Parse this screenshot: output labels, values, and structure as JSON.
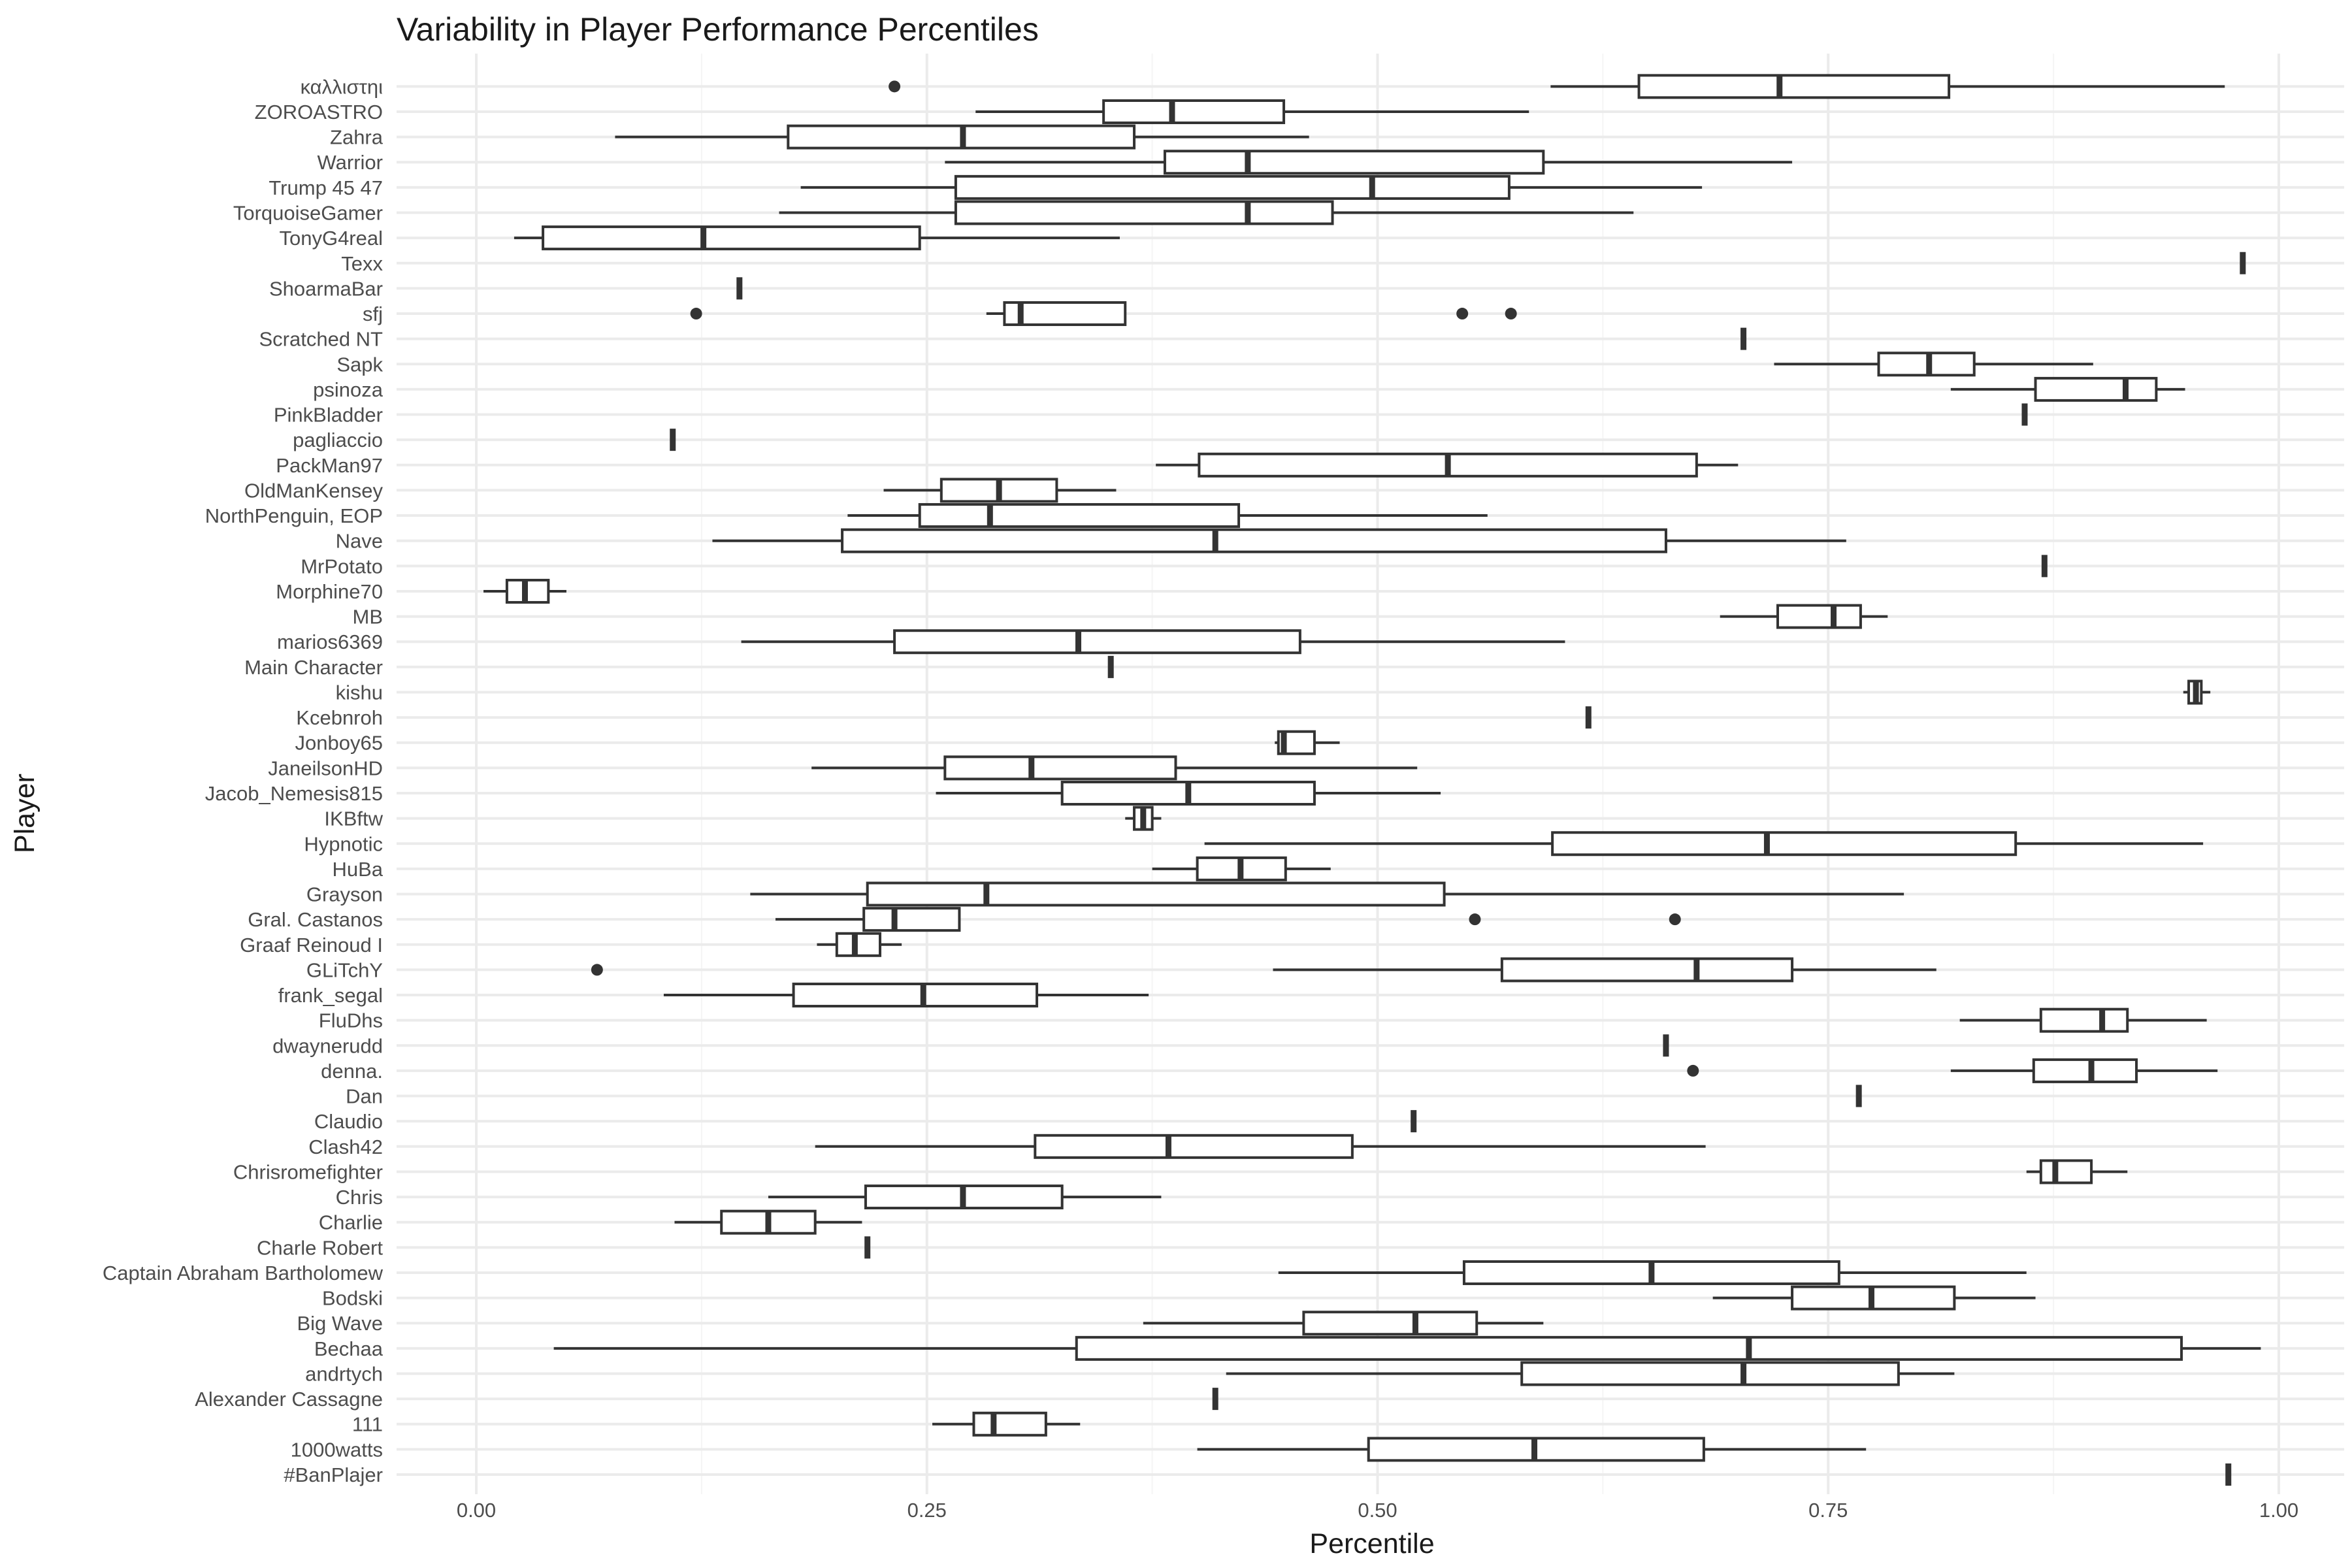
{
  "chart_data": {
    "type": "boxplot",
    "title": "Variability in Player Performance Percentiles",
    "xlabel": "Percentile",
    "ylabel": "Player",
    "xlim": [
      -0.04,
      1.04
    ],
    "xticks": [
      0,
      0.25,
      0.5,
      0.75,
      1
    ],
    "xtick_labels": [
      "0.00",
      "0.25",
      "0.50",
      "0.75",
      "1.00"
    ],
    "grid": true,
    "legend": "none",
    "colors": {
      "box_stroke": "#333333",
      "box_fill": "#ffffff",
      "grid_major": "#ebebeb",
      "grid_minor": "#f5f5f5",
      "outlier": "#333333"
    },
    "categories": [
      "#BanPlajer",
      "1000watts",
      "111",
      "Alexander Cassagne",
      "andrtych",
      "Bechaa",
      "Big Wave",
      "Bodski",
      "Captain Abraham Bartholomew",
      "Charle Robert",
      "Charlie",
      "Chris",
      "Chrisromefighter",
      "Clash42",
      "Claudio",
      "Dan",
      "denna.",
      "dwaynerudd",
      "FluDhs",
      "frank_segal",
      "GLiTchY",
      "Graaf Reinoud I",
      "Gral. Castanos",
      "Grayson",
      "HuBa",
      "Hypnotic",
      "IKBftw",
      "Jacob_Nemesis815",
      "JaneilsonHD",
      "Jonboy65",
      "Kcebnroh",
      "kishu",
      "Main Character",
      "marios6369",
      "MB",
      "Morphine70",
      "MrPotato",
      "Nave",
      "NorthPenguin, EOP",
      "OldManKensey",
      "PackMan97",
      "pagliaccio",
      "PinkBladder",
      "psinoza",
      "Sapk",
      "Scratched NT",
      "sfj",
      "ShoarmaBar",
      "Texx",
      "TonyG4real",
      "TorquoiseGamer",
      "Trump 45 47",
      "Warrior",
      "Zahra",
      "ZOROASTRO",
      "καλλιστηι"
    ],
    "boxes": [
      {
        "player": "#BanPlajer",
        "min": 0.972,
        "q1": 0.972,
        "median": 0.972,
        "q3": 0.972,
        "max": 0.972,
        "outliers": []
      },
      {
        "player": "1000watts",
        "min": 0.4,
        "q1": 0.495,
        "median": 0.587,
        "q3": 0.681,
        "max": 0.771,
        "outliers": []
      },
      {
        "player": "111",
        "min": 0.253,
        "q1": 0.276,
        "median": 0.287,
        "q3": 0.316,
        "max": 0.335,
        "outliers": []
      },
      {
        "player": "Alexander Cassagne",
        "min": 0.41,
        "q1": 0.41,
        "median": 0.41,
        "q3": 0.41,
        "max": 0.41,
        "outliers": []
      },
      {
        "player": "andrtych",
        "min": 0.416,
        "q1": 0.58,
        "median": 0.703,
        "q3": 0.789,
        "max": 0.82,
        "outliers": []
      },
      {
        "player": "Bechaa",
        "min": 0.043,
        "q1": 0.333,
        "median": 0.706,
        "q3": 0.946,
        "max": 0.99,
        "outliers": []
      },
      {
        "player": "Big Wave",
        "min": 0.37,
        "q1": 0.459,
        "median": 0.521,
        "q3": 0.555,
        "max": 0.592,
        "outliers": []
      },
      {
        "player": "Bodski",
        "min": 0.686,
        "q1": 0.73,
        "median": 0.774,
        "q3": 0.82,
        "max": 0.865,
        "outliers": []
      },
      {
        "player": "Captain Abraham Bartholomew",
        "min": 0.445,
        "q1": 0.548,
        "median": 0.652,
        "q3": 0.756,
        "max": 0.86,
        "outliers": []
      },
      {
        "player": "Charle Robert",
        "min": 0.217,
        "q1": 0.217,
        "median": 0.217,
        "q3": 0.217,
        "max": 0.217,
        "outliers": []
      },
      {
        "player": "Charlie",
        "min": 0.11,
        "q1": 0.136,
        "median": 0.162,
        "q3": 0.188,
        "max": 0.214,
        "outliers": []
      },
      {
        "player": "Chris",
        "min": 0.162,
        "q1": 0.216,
        "median": 0.27,
        "q3": 0.325,
        "max": 0.38,
        "outliers": []
      },
      {
        "player": "Chrisromefighter",
        "min": 0.86,
        "q1": 0.868,
        "median": 0.876,
        "q3": 0.896,
        "max": 0.916,
        "outliers": []
      },
      {
        "player": "Clash42",
        "min": 0.188,
        "q1": 0.31,
        "median": 0.384,
        "q3": 0.486,
        "max": 0.682,
        "outliers": []
      },
      {
        "player": "Claudio",
        "min": 0.52,
        "q1": 0.52,
        "median": 0.52,
        "q3": 0.52,
        "max": 0.52,
        "outliers": []
      },
      {
        "player": "Dan",
        "min": 0.767,
        "q1": 0.767,
        "median": 0.767,
        "q3": 0.767,
        "max": 0.767,
        "outliers": []
      },
      {
        "player": "denna.",
        "min": 0.818,
        "q1": 0.864,
        "median": 0.896,
        "q3": 0.921,
        "max": 0.966,
        "outliers": [
          0.675
        ]
      },
      {
        "player": "dwaynerudd",
        "min": 0.66,
        "q1": 0.66,
        "median": 0.66,
        "q3": 0.66,
        "max": 0.66,
        "outliers": []
      },
      {
        "player": "FluDhs",
        "min": 0.823,
        "q1": 0.868,
        "median": 0.902,
        "q3": 0.916,
        "max": 0.96,
        "outliers": []
      },
      {
        "player": "frank_segal",
        "min": 0.104,
        "q1": 0.176,
        "median": 0.248,
        "q3": 0.311,
        "max": 0.373,
        "outliers": []
      },
      {
        "player": "GLiTchY",
        "min": 0.442,
        "q1": 0.569,
        "median": 0.677,
        "q3": 0.73,
        "max": 0.81,
        "outliers": [
          0.067
        ]
      },
      {
        "player": "Graaf Reinoud I",
        "min": 0.189,
        "q1": 0.2,
        "median": 0.21,
        "q3": 0.224,
        "max": 0.236,
        "outliers": []
      },
      {
        "player": "Gral. Castanos",
        "min": 0.166,
        "q1": 0.215,
        "median": 0.232,
        "q3": 0.268,
        "max": 0.268,
        "outliers": [
          0.554,
          0.665
        ]
      },
      {
        "player": "Grayson",
        "min": 0.152,
        "q1": 0.217,
        "median": 0.283,
        "q3": 0.537,
        "max": 0.792,
        "outliers": []
      },
      {
        "player": "HuBa",
        "min": 0.375,
        "q1": 0.4,
        "median": 0.424,
        "q3": 0.449,
        "max": 0.474,
        "outliers": []
      },
      {
        "player": "Hypnotic",
        "min": 0.404,
        "q1": 0.597,
        "median": 0.716,
        "q3": 0.854,
        "max": 0.958,
        "outliers": []
      },
      {
        "player": "IKBftw",
        "min": 0.36,
        "q1": 0.365,
        "median": 0.37,
        "q3": 0.375,
        "max": 0.38,
        "outliers": []
      },
      {
        "player": "Jacob_Nemesis815",
        "min": 0.255,
        "q1": 0.325,
        "median": 0.395,
        "q3": 0.465,
        "max": 0.535,
        "outliers": []
      },
      {
        "player": "JaneilsonHD",
        "min": 0.186,
        "q1": 0.26,
        "median": 0.308,
        "q3": 0.388,
        "max": 0.522,
        "outliers": []
      },
      {
        "player": "Jonboy65",
        "min": 0.443,
        "q1": 0.445,
        "median": 0.448,
        "q3": 0.465,
        "max": 0.479,
        "outliers": []
      },
      {
        "player": "Kcebnroh",
        "min": 0.617,
        "q1": 0.617,
        "median": 0.617,
        "q3": 0.617,
        "max": 0.617,
        "outliers": []
      },
      {
        "player": "kishu",
        "min": 0.947,
        "q1": 0.95,
        "median": 0.954,
        "q3": 0.957,
        "max": 0.962,
        "outliers": []
      },
      {
        "player": "Main Character",
        "min": 0.352,
        "q1": 0.352,
        "median": 0.352,
        "q3": 0.352,
        "max": 0.352,
        "outliers": []
      },
      {
        "player": "marios6369",
        "min": 0.147,
        "q1": 0.232,
        "median": 0.334,
        "q3": 0.457,
        "max": 0.604,
        "outliers": []
      },
      {
        "player": "MB",
        "min": 0.69,
        "q1": 0.722,
        "median": 0.753,
        "q3": 0.768,
        "max": 0.783,
        "outliers": []
      },
      {
        "player": "Morphine70",
        "min": 0.004,
        "q1": 0.017,
        "median": 0.027,
        "q3": 0.04,
        "max": 0.05,
        "outliers": []
      },
      {
        "player": "MrPotato",
        "min": 0.87,
        "q1": 0.87,
        "median": 0.87,
        "q3": 0.87,
        "max": 0.87,
        "outliers": []
      },
      {
        "player": "Nave",
        "min": 0.131,
        "q1": 0.203,
        "median": 0.41,
        "q3": 0.66,
        "max": 0.76,
        "outliers": []
      },
      {
        "player": "NorthPenguin, EOP",
        "min": 0.206,
        "q1": 0.246,
        "median": 0.285,
        "q3": 0.423,
        "max": 0.561,
        "outliers": []
      },
      {
        "player": "OldManKensey",
        "min": 0.226,
        "q1": 0.258,
        "median": 0.29,
        "q3": 0.322,
        "max": 0.355,
        "outliers": []
      },
      {
        "player": "PackMan97",
        "min": 0.377,
        "q1": 0.401,
        "median": 0.539,
        "q3": 0.677,
        "max": 0.7,
        "outliers": []
      },
      {
        "player": "pagliaccio",
        "min": 0.109,
        "q1": 0.109,
        "median": 0.109,
        "q3": 0.109,
        "max": 0.109,
        "outliers": []
      },
      {
        "player": "PinkBladder",
        "min": 0.859,
        "q1": 0.859,
        "median": 0.859,
        "q3": 0.859,
        "max": 0.859,
        "outliers": []
      },
      {
        "player": "psinoza",
        "min": 0.818,
        "q1": 0.865,
        "median": 0.915,
        "q3": 0.932,
        "max": 0.948,
        "outliers": []
      },
      {
        "player": "Sapk",
        "min": 0.72,
        "q1": 0.778,
        "median": 0.806,
        "q3": 0.831,
        "max": 0.897,
        "outliers": []
      },
      {
        "player": "Scratched NT",
        "min": 0.703,
        "q1": 0.703,
        "median": 0.703,
        "q3": 0.703,
        "max": 0.703,
        "outliers": []
      },
      {
        "player": "sfj",
        "min": 0.283,
        "q1": 0.293,
        "median": 0.302,
        "q3": 0.36,
        "max": 0.36,
        "outliers": [
          0.122,
          0.547,
          0.574
        ]
      },
      {
        "player": "ShoarmaBar",
        "min": 0.146,
        "q1": 0.146,
        "median": 0.146,
        "q3": 0.146,
        "max": 0.146,
        "outliers": []
      },
      {
        "player": "Texx",
        "min": 0.98,
        "q1": 0.98,
        "median": 0.98,
        "q3": 0.98,
        "max": 0.98,
        "outliers": []
      },
      {
        "player": "TonyG4real",
        "min": 0.021,
        "q1": 0.037,
        "median": 0.126,
        "q3": 0.246,
        "max": 0.357,
        "outliers": []
      },
      {
        "player": "TorquoiseGamer",
        "min": 0.168,
        "q1": 0.266,
        "median": 0.428,
        "q3": 0.475,
        "max": 0.642,
        "outliers": []
      },
      {
        "player": "Trump 45 47",
        "min": 0.18,
        "q1": 0.266,
        "median": 0.497,
        "q3": 0.573,
        "max": 0.68,
        "outliers": []
      },
      {
        "player": "Warrior",
        "min": 0.26,
        "q1": 0.382,
        "median": 0.428,
        "q3": 0.592,
        "max": 0.73,
        "outliers": []
      },
      {
        "player": "Zahra",
        "min": 0.077,
        "q1": 0.173,
        "median": 0.27,
        "q3": 0.365,
        "max": 0.462,
        "outliers": []
      },
      {
        "player": "ZOROASTRO",
        "min": 0.277,
        "q1": 0.348,
        "median": 0.386,
        "q3": 0.448,
        "max": 0.584,
        "outliers": []
      },
      {
        "player": "καλλιστηι",
        "min": 0.596,
        "q1": 0.645,
        "median": 0.723,
        "q3": 0.817,
        "max": 0.97,
        "outliers": [
          0.232
        ]
      }
    ]
  }
}
